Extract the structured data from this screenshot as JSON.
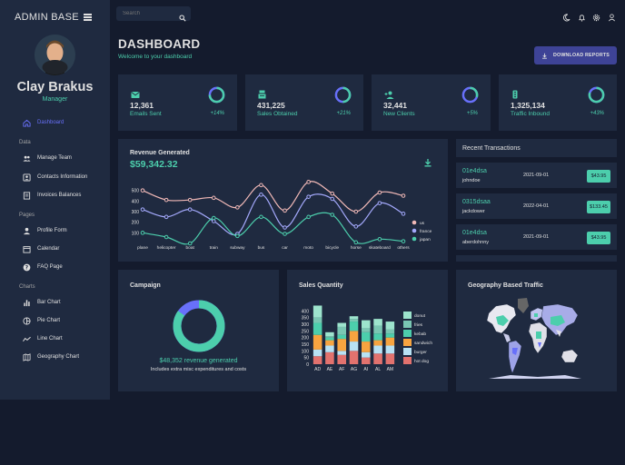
{
  "brand": "ADMIN BASE",
  "profile": {
    "name": "Clay Brakus",
    "role": "Manager"
  },
  "sidebar": {
    "dashboard": "Dashboard",
    "sections": [
      {
        "title": "Data",
        "items": [
          "Manage Team",
          "Contacts Information",
          "Invoices Balances"
        ]
      },
      {
        "title": "Pages",
        "items": [
          "Profile Form",
          "Calendar",
          "FAQ Page"
        ]
      },
      {
        "title": "Charts",
        "items": [
          "Bar Chart",
          "Pie Chart",
          "Line Chart",
          "Geography Chart"
        ]
      }
    ]
  },
  "search": {
    "placeholder": "Search"
  },
  "header": {
    "title": "DASHBOARD",
    "subtitle": "Welcome to your dashboard",
    "download": "DOWNLOAD REPORTS"
  },
  "stats": [
    {
      "value": "12,361",
      "label": "Emails Sent",
      "increase": "+14%",
      "progress": 0.75,
      "icon": "email-icon"
    },
    {
      "value": "431,225",
      "label": "Sales Obtained",
      "increase": "+21%",
      "progress": 0.5,
      "icon": "point-of-sale-icon"
    },
    {
      "value": "32,441",
      "label": "New Clients",
      "increase": "+5%",
      "progress": 0.3,
      "icon": "person-add-icon"
    },
    {
      "value": "1,325,134",
      "label": "Traffic Inbound",
      "increase": "+43%",
      "progress": 0.8,
      "icon": "traffic-icon"
    }
  ],
  "revenue": {
    "title": "Revenue Generated",
    "value": "$59,342.32"
  },
  "transactions": {
    "title": "Recent Transactions",
    "rows": [
      {
        "id": "01e4dsa",
        "user": "johndoe",
        "date": "2021-09-01",
        "cost": "$43.95"
      },
      {
        "id": "0315dsaa",
        "user": "jackdower",
        "date": "2022-04-01",
        "cost": "$133.45"
      },
      {
        "id": "01e4dsa",
        "user": "aberdohnny",
        "date": "2021-09-01",
        "cost": "$43.95"
      }
    ]
  },
  "campaign": {
    "title": "Campaign",
    "value": "$48,352 revenue generated",
    "note": "Includes extra misc expenditures and costs",
    "progress": 0.85
  },
  "sales_title": "Sales Quantity",
  "geo_title": "Geography Based Traffic",
  "colors": {
    "accent": "#4cceac",
    "primary": "#3e4396",
    "active": "#6870fa",
    "card": "#1f2a40",
    "bg": "#141b2d"
  },
  "chart_data": [
    {
      "type": "line",
      "x": [
        "plane",
        "helicopter",
        "boat",
        "train",
        "subway",
        "bus",
        "car",
        "moto",
        "bicycle",
        "horse",
        "skateboard",
        "others"
      ],
      "series": [
        {
          "name": "us",
          "color": "#f1b9b7",
          "values": [
            500,
            410,
            410,
            430,
            340,
            550,
            310,
            580,
            470,
            300,
            480,
            450
          ]
        },
        {
          "name": "france",
          "color": "#a4a9fc",
          "values": [
            320,
            250,
            320,
            210,
            90,
            460,
            150,
            440,
            420,
            160,
            380,
            280
          ]
        },
        {
          "name": "japan",
          "color": "#4cceac",
          "values": [
            100,
            60,
            0,
            240,
            70,
            250,
            90,
            250,
            270,
            10,
            40,
            20
          ]
        }
      ],
      "ylim": [
        0,
        600
      ],
      "yticks": [
        "100",
        "200",
        "300",
        "400",
        "500"
      ],
      "legend": "right"
    },
    {
      "type": "bar",
      "stacked": true,
      "categories": [
        "AD",
        "AE",
        "AF",
        "AG",
        "AI",
        "AL",
        "AM"
      ],
      "series": [
        {
          "name": "hot dog",
          "color": "#e2726e",
          "values": [
            60,
            90,
            70,
            100,
            50,
            80,
            80
          ]
        },
        {
          "name": "burger",
          "color": "#b8e2f4",
          "values": [
            50,
            50,
            30,
            70,
            40,
            60,
            60
          ]
        },
        {
          "name": "sandwich",
          "color": "#f7a440",
          "values": [
            110,
            40,
            90,
            80,
            80,
            40,
            60
          ]
        },
        {
          "name": "kebab",
          "color": "#4cceac",
          "values": [
            90,
            20,
            30,
            70,
            70,
            50,
            30
          ]
        },
        {
          "name": "fries",
          "color": "#7ac7b3",
          "values": [
            40,
            10,
            60,
            20,
            30,
            60,
            30
          ]
        },
        {
          "name": "donut",
          "color": "#9de4cd",
          "values": [
            90,
            30,
            30,
            20,
            60,
            50,
            60
          ]
        }
      ],
      "ylim": [
        0,
        450
      ],
      "yticks": [
        "0",
        "50",
        "100",
        "150",
        "200",
        "250",
        "300",
        "350",
        "400"
      ],
      "legend": "right"
    }
  ]
}
